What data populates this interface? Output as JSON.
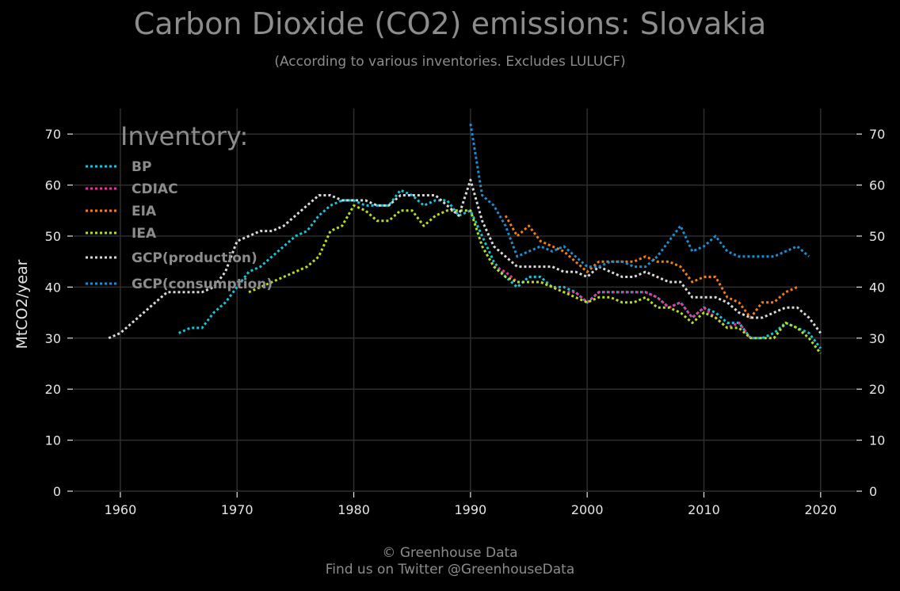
{
  "chart_data": {
    "type": "line",
    "title": "Carbon Dioxide (CO2) emissions: Slovakia",
    "subtitle": "(According to various inventories. Excludes LULUCF)",
    "xlabel": "",
    "ylabel": "MtCO2/year",
    "xlim": [
      1956,
      2023
    ],
    "ylim": [
      0,
      75
    ],
    "x_ticks": [
      1960,
      1970,
      1980,
      1990,
      2000,
      2010,
      2020
    ],
    "y_ticks": [
      0,
      10,
      20,
      30,
      40,
      50,
      60,
      70
    ],
    "grid": true,
    "legend_title": "Inventory:",
    "legend_position": "top-left",
    "series": [
      {
        "name": "BP",
        "color": "#17c3d6",
        "x": [
          1965,
          1966,
          1967,
          1968,
          1969,
          1970,
          1971,
          1972,
          1973,
          1974,
          1975,
          1976,
          1977,
          1978,
          1979,
          1980,
          1981,
          1982,
          1983,
          1984,
          1985,
          1986,
          1987,
          1988,
          1989,
          1990,
          1991,
          1992,
          1993,
          1994,
          1995,
          1996,
          1997,
          1998,
          1999,
          2000,
          2001,
          2002,
          2003,
          2004,
          2005,
          2006,
          2007,
          2008,
          2009,
          2010,
          2011,
          2012,
          2013,
          2014,
          2015,
          2016,
          2017,
          2018,
          2019,
          2020
        ],
        "y": [
          31,
          32,
          32,
          35,
          37,
          40,
          43,
          44,
          46,
          48,
          50,
          51,
          54,
          56,
          57,
          57,
          56,
          56,
          56,
          59,
          58,
          56,
          57,
          57,
          54,
          55,
          50,
          45,
          42,
          40,
          42,
          42,
          40,
          40,
          39,
          37,
          39,
          39,
          39,
          39,
          39,
          38,
          36,
          37,
          34,
          36,
          35,
          33,
          33,
          30,
          30,
          31,
          33,
          32,
          31,
          28
        ]
      },
      {
        "name": "CDIAC",
        "color": "#e8359c",
        "x": [
          1992,
          1993,
          1994,
          1995,
          1996,
          1997,
          1998,
          1999,
          2000,
          2001,
          2002,
          2003,
          2004,
          2005,
          2006,
          2007,
          2008,
          2009,
          2010,
          2011,
          2012,
          2013,
          2014
        ],
        "y": [
          44,
          43,
          41,
          41,
          41,
          40,
          39,
          39,
          37,
          39,
          39,
          39,
          39,
          39,
          38,
          36,
          37,
          34,
          36,
          34,
          32,
          33,
          30
        ]
      },
      {
        "name": "EIA",
        "color": "#f07f13",
        "x": [
          1993,
          1994,
          1995,
          1996,
          1997,
          1998,
          1999,
          2000,
          2001,
          2002,
          2003,
          2004,
          2005,
          2006,
          2007,
          2008,
          2009,
          2010,
          2011,
          2012,
          2013,
          2014,
          2015,
          2016,
          2017,
          2018
        ],
        "y": [
          54,
          50,
          52,
          49,
          48,
          47,
          45,
          43,
          45,
          45,
          45,
          45,
          46,
          45,
          45,
          44,
          41,
          42,
          42,
          38,
          37,
          34,
          37,
          37,
          39,
          40
        ]
      },
      {
        "name": "IEA",
        "color": "#b3e01b",
        "x": [
          1971,
          1972,
          1973,
          1974,
          1975,
          1976,
          1977,
          1978,
          1979,
          1980,
          1981,
          1982,
          1983,
          1984,
          1985,
          1986,
          1987,
          1988,
          1989,
          1990,
          1991,
          1992,
          1993,
          1994,
          1995,
          1996,
          1997,
          1998,
          1999,
          2000,
          2001,
          2002,
          2003,
          2004,
          2005,
          2006,
          2007,
          2008,
          2009,
          2010,
          2011,
          2012,
          2013,
          2014,
          2015,
          2016,
          2017,
          2018,
          2019,
          2020
        ],
        "y": [
          39,
          40,
          41,
          42,
          43,
          44,
          46,
          51,
          52,
          56,
          55,
          53,
          53,
          55,
          55,
          52,
          54,
          55,
          55,
          55,
          48,
          44,
          42,
          41,
          41,
          41,
          40,
          39,
          38,
          37,
          38,
          38,
          37,
          37,
          38,
          36,
          36,
          35,
          33,
          35,
          34,
          32,
          32,
          30,
          30,
          30,
          33,
          32,
          30,
          27
        ]
      },
      {
        "name": "GCP(production)",
        "color": "#d9d9d9",
        "x": [
          1959,
          1960,
          1961,
          1962,
          1963,
          1964,
          1965,
          1966,
          1967,
          1968,
          1969,
          1970,
          1971,
          1972,
          1973,
          1974,
          1975,
          1976,
          1977,
          1978,
          1979,
          1980,
          1981,
          1982,
          1983,
          1984,
          1985,
          1986,
          1987,
          1988,
          1989,
          1990,
          1991,
          1992,
          1993,
          1994,
          1995,
          1996,
          1997,
          1998,
          1999,
          2000,
          2001,
          2002,
          2003,
          2004,
          2005,
          2006,
          2007,
          2008,
          2009,
          2010,
          2011,
          2012,
          2013,
          2014,
          2015,
          2016,
          2017,
          2018,
          2019,
          2020
        ],
        "y": [
          30,
          31,
          33,
          35,
          37,
          39,
          39,
          39,
          39,
          40,
          43,
          49,
          50,
          51,
          51,
          52,
          54,
          56,
          58,
          58,
          57,
          57,
          57,
          56,
          56,
          58,
          58,
          58,
          58,
          56,
          54,
          61,
          53,
          48,
          46,
          44,
          44,
          44,
          44,
          43,
          43,
          42,
          44,
          43,
          42,
          42,
          43,
          42,
          41,
          41,
          38,
          38,
          38,
          37,
          35,
          34,
          34,
          35,
          36,
          36,
          34,
          31
        ]
      },
      {
        "name": "GCP(consumption)",
        "color": "#1a8fd1",
        "x": [
          1990,
          1991,
          1992,
          1993,
          1994,
          1995,
          1996,
          1997,
          1998,
          1999,
          2000,
          2001,
          2002,
          2003,
          2004,
          2005,
          2006,
          2007,
          2008,
          2009,
          2010,
          2011,
          2012,
          2013,
          2014,
          2015,
          2016,
          2017,
          2018,
          2019
        ],
        "y": [
          72,
          58,
          56,
          52,
          46,
          47,
          48,
          47,
          48,
          46,
          44,
          44,
          45,
          45,
          44,
          44,
          46,
          49,
          52,
          47,
          48,
          50,
          47,
          46,
          46,
          46,
          46,
          47,
          48,
          46
        ]
      }
    ],
    "footer": [
      "© Greenhouse Data",
      "Find us on Twitter @GreenhouseData"
    ]
  }
}
